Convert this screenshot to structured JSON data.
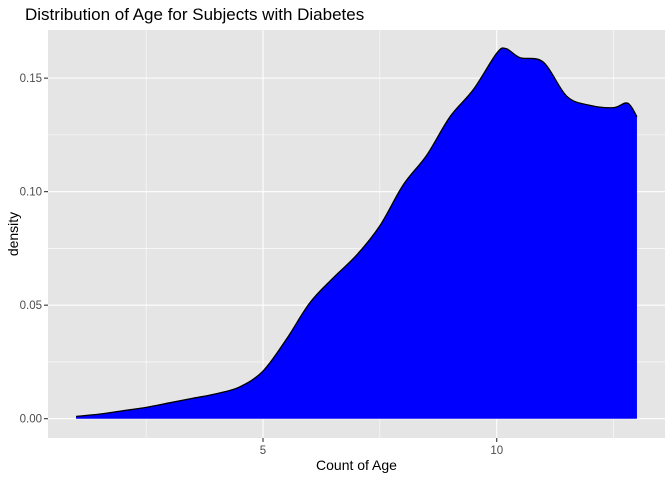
{
  "chart_data": {
    "type": "area",
    "title": "Distribution of Age for Subjects with Diabetes",
    "xlabel": "Count of Age",
    "ylabel": "density",
    "xlim": [
      0.4,
      13.6
    ],
    "ylim": [
      -0.0085,
      0.1712
    ],
    "x_ticks": [
      5,
      10
    ],
    "x_tick_labels": [
      "5",
      "10"
    ],
    "x_minor": [
      2.5,
      7.5,
      12.5
    ],
    "y_ticks": [
      0.0,
      0.05,
      0.1,
      0.15
    ],
    "y_tick_labels": [
      "0.00",
      "0.05",
      "0.10",
      "0.15"
    ],
    "y_minor": [
      0.025,
      0.075,
      0.125
    ],
    "grid": true,
    "colors": {
      "fill": "#0000ff",
      "outline": "#000000",
      "panel": "#e5e5e5",
      "grid": "#ffffff"
    },
    "series": [
      {
        "x": [
          1,
          1.5,
          2,
          2.5,
          3,
          3.5,
          4,
          4.5,
          5,
          5.5,
          6,
          6.5,
          7,
          7.5,
          8,
          8.5,
          9,
          9.5,
          10,
          10.2,
          10.5,
          11,
          11.5,
          12,
          12.5,
          12.8,
          13
        ],
        "y": [
          0.001,
          0.002,
          0.0035,
          0.005,
          0.007,
          0.009,
          0.011,
          0.014,
          0.021,
          0.035,
          0.051,
          0.062,
          0.072,
          0.085,
          0.103,
          0.116,
          0.133,
          0.145,
          0.161,
          0.163,
          0.159,
          0.157,
          0.142,
          0.138,
          0.137,
          0.139,
          0.133
        ]
      }
    ]
  }
}
